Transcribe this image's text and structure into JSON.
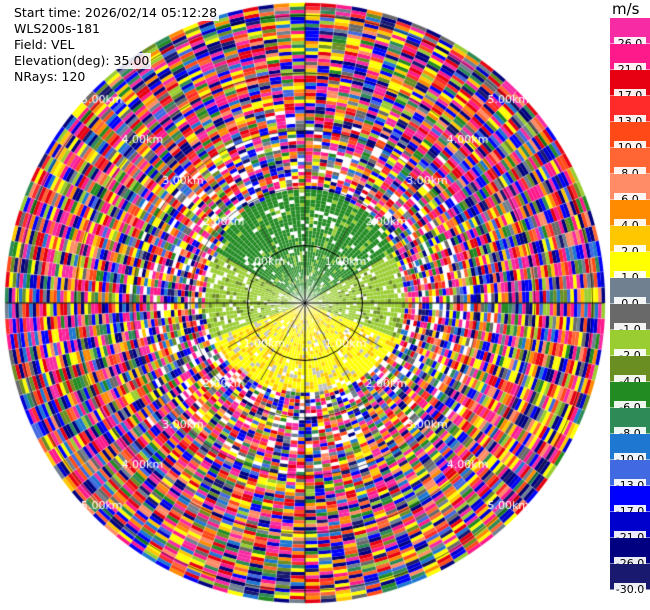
{
  "info": {
    "start_time": "Start time: 2026/02/14 05:12:28",
    "instrument": "WLS200s-181",
    "field": "Field: VEL",
    "elevation": "Elevation(deg): 35.00",
    "nrays": "NRays: 120"
  },
  "colorbar": {
    "unit": "m/s",
    "ticks": [
      "26.0",
      "21.0",
      "17.0",
      "13.0",
      "10.0",
      "8.0",
      "6.0",
      "4.0",
      "2.0",
      "1.0",
      "0.0",
      "-1.0",
      "-2.0",
      "-4.0",
      "-6.0",
      "-8.0",
      "-10.0",
      "-13.0",
      "-17.0",
      "-21.0",
      "-26.0",
      "-30.0"
    ],
    "colors": [
      "#f72ba4",
      "#ff1a8c",
      "#e60012",
      "#ff2a2a",
      "#ff4a18",
      "#ff6633",
      "#ff8c66",
      "#ff8c00",
      "#ffc700",
      "#ffff00",
      "#708090",
      "#696969",
      "#9acd32",
      "#6b8e23",
      "#228b22",
      "#2e8b57",
      "#1e78d2",
      "#4169e1",
      "#0000ff",
      "#0000cd",
      "#000080",
      "#191970"
    ]
  },
  "chart_data": {
    "type": "heatmap",
    "subtype": "polar-ppi",
    "field": "VEL",
    "units": "m/s",
    "elevation_deg": 35.0,
    "n_rays": 120,
    "range_rings_km": [
      1.0,
      2.0,
      3.0,
      4.0,
      5.0
    ],
    "range_ring_labels": [
      "1.00km",
      "2.00km",
      "3.00km",
      "4.00km",
      "5.00km"
    ],
    "max_range_km": 5.2,
    "color_range": [
      -30.0,
      26.0
    ],
    "near_field": {
      "north_sector": "green (-4 to -8 m/s)",
      "south_sector": "yellow (2 to 4 m/s)",
      "east_west_sectors": "olive green (-2 to -4 m/s)"
    },
    "far_field": "noisy multicolor (all values)"
  }
}
